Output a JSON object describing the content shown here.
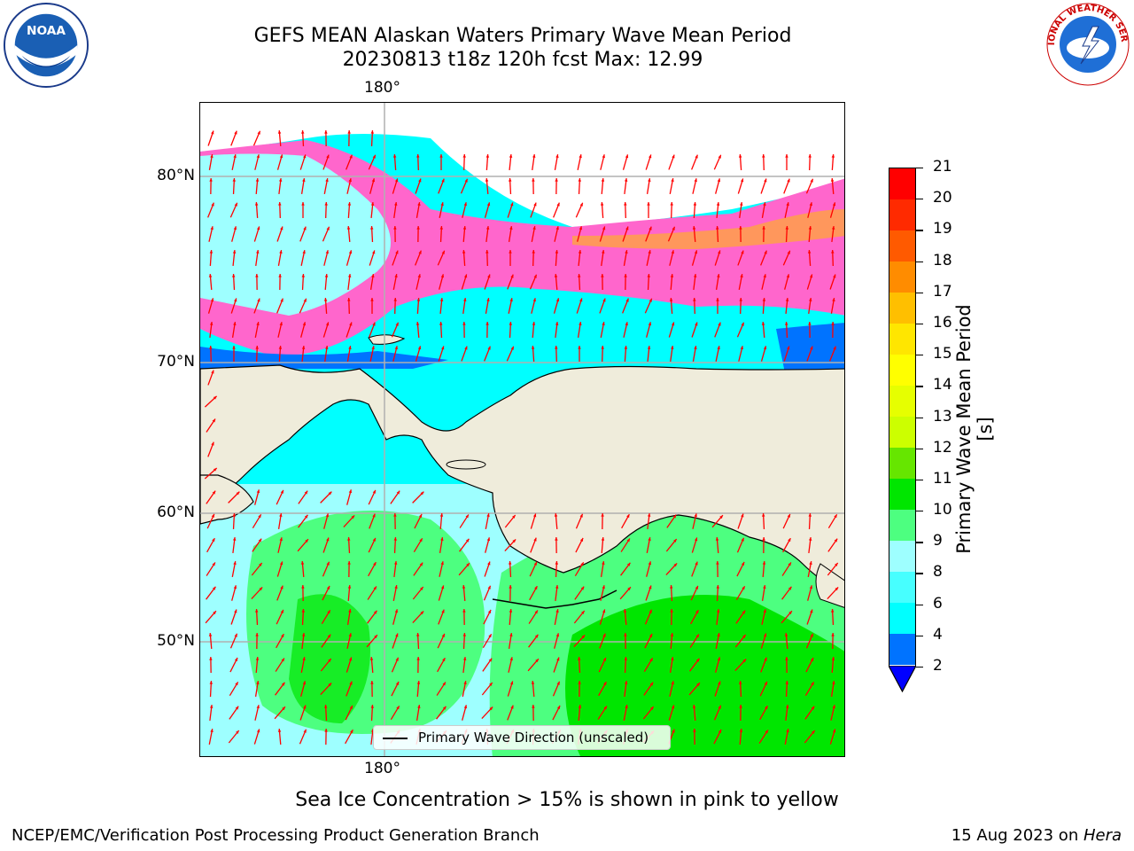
{
  "title_line1": "GEFS MEAN Alaskan Waters Primary Wave Mean Period",
  "title_line2": "20230813 t18z 120h fcst   Max: 12.99",
  "lon_labels": {
    "top": "180°",
    "bottom": "180°"
  },
  "lat_labels": [
    "80°N",
    "70°N",
    "60°N",
    "50°N"
  ],
  "colorbar": {
    "label": "Primary Wave Mean Period [s]",
    "ticks": [
      "2",
      "4",
      "6",
      "8",
      "9",
      "10",
      "11",
      "12",
      "13",
      "14",
      "15",
      "16",
      "17",
      "18",
      "19",
      "20",
      "21"
    ],
    "colors": [
      "#0073ff",
      "#00ffff",
      "#47ffff",
      "#9effff",
      "#4dff80",
      "#00e600",
      "#66e600",
      "#ccff00",
      "#e6ff00",
      "#ffff00",
      "#ffe600",
      "#ffbf00",
      "#ff8c00",
      "#ff5a00",
      "#ff2a00",
      "#ff0000"
    ],
    "under_color": "#0000ff"
  },
  "legend": {
    "label": "Primary Wave Direction (unscaled)"
  },
  "caption": "Sea Ice Concentration > 15% is shown in pink to yellow",
  "footer_left": "NCEP/EMC/Verification Post Processing Product Generation Branch",
  "footer_right_date": "15 Aug 2023 on ",
  "footer_right_machine": "Hera",
  "logos": {
    "left": "NOAA",
    "right": "NATIONAL WEATHER SERVICE"
  },
  "colors": {
    "land": "#efecdb",
    "arrow": "#ff0000",
    "ice": "#ff66cc",
    "grid": "#b0b0b0"
  }
}
